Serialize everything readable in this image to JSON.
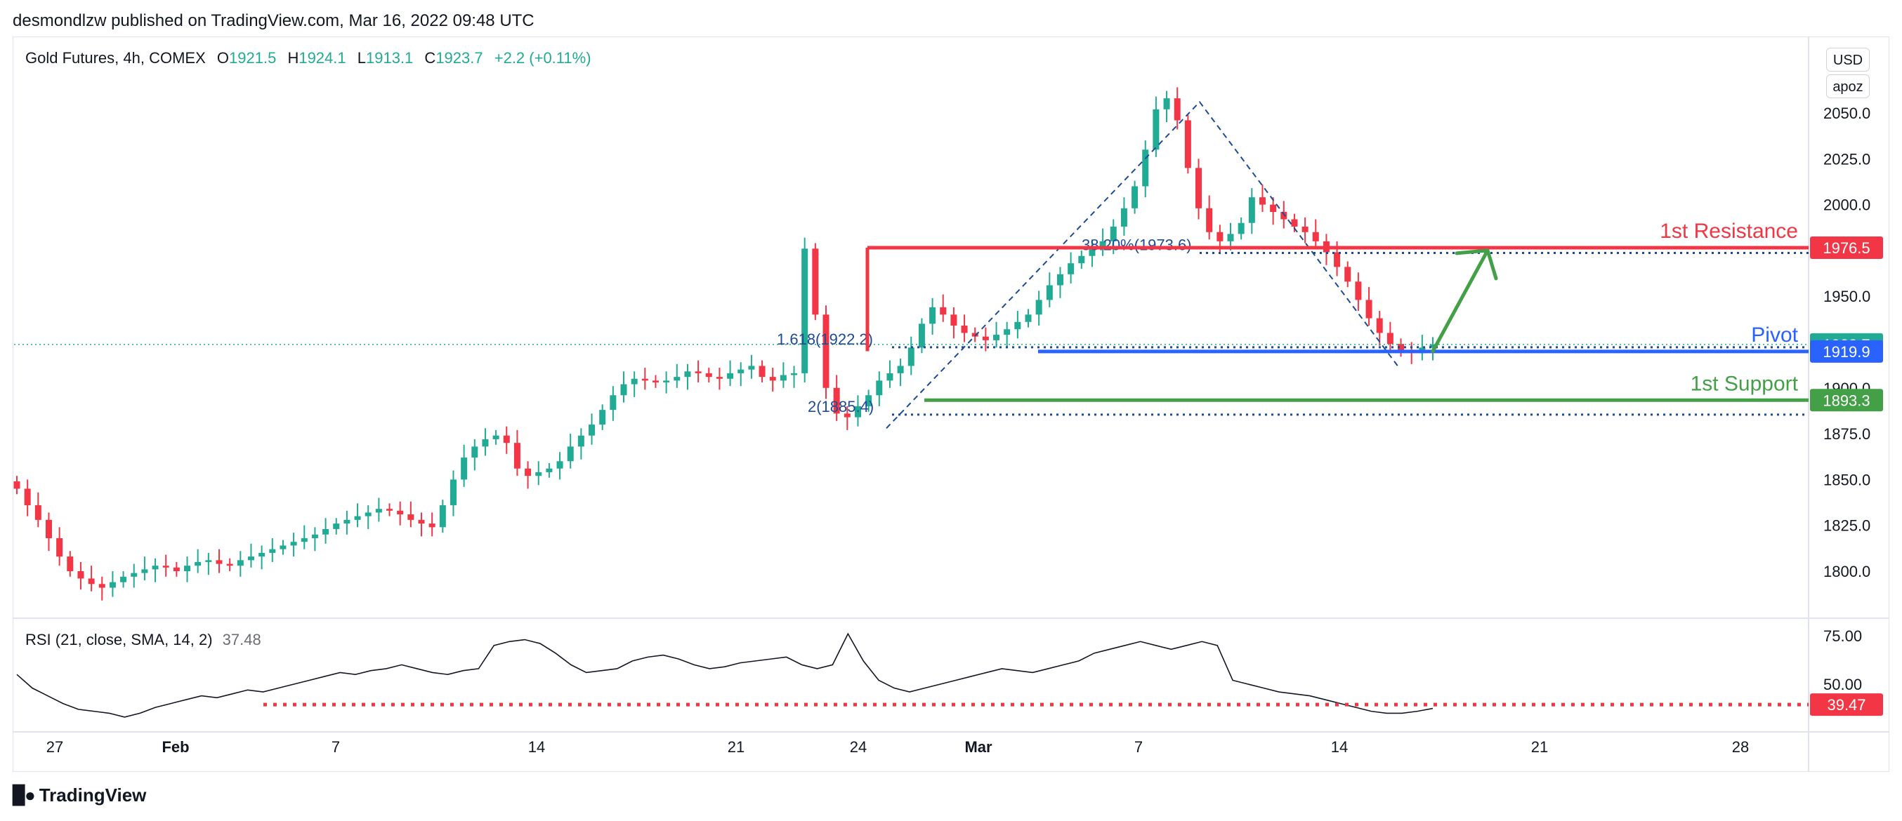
{
  "header": {
    "published": "desmondlzw published on TradingView.com, Mar 16, 2022 09:48 UTC"
  },
  "legend": {
    "symbol": "Gold Futures, 4h, COMEX",
    "open_label": "O",
    "open": "1921.5",
    "high_label": "H",
    "high": "1924.1",
    "low_label": "L",
    "low": "1913.1",
    "close_label": "C",
    "close": "1923.7",
    "change": "+2.2 (+0.11%)"
  },
  "price_scale": {
    "currency_btn": "USD",
    "mode_btn": "apoz"
  },
  "rsi": {
    "title": "RSI (21, close, SMA, 14, 2)",
    "value": "37.48"
  },
  "branding": {
    "logo_text": "TradingView",
    "logo_icon": "tradingview-logo-icon"
  },
  "colors": {
    "up": "#22ab94",
    "down": "#f23645",
    "resistance": "#f23645",
    "pivot": "#2962ff",
    "support": "#43a047",
    "fib": "#1e4a9a",
    "rsi_line": "#131722"
  },
  "chart_data": [
    {
      "type": "candlestick",
      "title": "Gold Futures, 4h, COMEX",
      "x_tick_labels": [
        "27",
        "Feb",
        "7",
        "14",
        "21",
        "24",
        "Mar",
        "7",
        "14",
        "21",
        "28"
      ],
      "y_ticks": [
        1800.0,
        1825.0,
        1850.0,
        1875.0,
        1900.0,
        1925.0,
        1950.0,
        1975.0,
        2000.0,
        2025.0,
        2050.0
      ],
      "y_tick_labels": [
        "1800.0",
        "1825.0",
        "1850.0",
        "1875.0",
        "1900.0",
        "1950.0",
        "2000.0",
        "2025.0",
        "2050.0"
      ],
      "ylim": [
        1779,
        2065
      ],
      "grid": false,
      "close_series_approx": [
        1845,
        1836,
        1828,
        1818,
        1808,
        1800,
        1796,
        1793,
        1791,
        1794,
        1797,
        1799,
        1801,
        1803,
        1802,
        1800,
        1803,
        1805,
        1806,
        1804,
        1803,
        1806,
        1808,
        1810,
        1812,
        1814,
        1816,
        1818,
        1820,
        1823,
        1826,
        1828,
        1830,
        1832,
        1834,
        1833,
        1831,
        1828,
        1826,
        1824,
        1836,
        1850,
        1862,
        1868,
        1872,
        1874,
        1870,
        1856,
        1852,
        1854,
        1856,
        1860,
        1868,
        1874,
        1880,
        1888,
        1896,
        1902,
        1905,
        1904,
        1903,
        1904,
        1906,
        1909,
        1908,
        1906,
        1905,
        1908,
        1910,
        1912,
        1906,
        1904,
        1907,
        1908,
        1976,
        1940,
        1900,
        1886,
        1884,
        1890,
        1896,
        1904,
        1908,
        1912,
        1922,
        1935,
        1944,
        1940,
        1934,
        1930,
        1928,
        1926,
        1929,
        1932,
        1936,
        1940,
        1948,
        1956,
        1962,
        1968,
        1972,
        1976,
        1980,
        1988,
        1998,
        2010,
        2030,
        2052,
        2058,
        2046,
        2020,
        1998,
        1985,
        1980,
        1984,
        1990,
        2004,
        2000,
        1996,
        1992,
        1988,
        1985,
        1980,
        1974,
        1966,
        1958,
        1948,
        1938,
        1930,
        1924,
        1920,
        1919,
        1922,
        1923.7
      ],
      "levels": [
        {
          "name": "1st Resistance",
          "value": 1976.5,
          "label": "1976.5",
          "color": "#f23645"
        },
        {
          "name": "Pivot",
          "value": 1919.9,
          "label": "1919.9",
          "color": "#2962ff"
        },
        {
          "name": "1st Support",
          "value": 1893.3,
          "label": "1893.3",
          "color": "#43a047"
        }
      ],
      "last_price": {
        "value": 1923.7,
        "label": "1923.7"
      },
      "fib_labels": [
        "38.20%(1973.6)",
        "1.618(1922.2)",
        "2(1885.4)"
      ],
      "annotations": [
        "1st Resistance",
        "Pivot",
        "1st Support"
      ]
    },
    {
      "type": "line",
      "title": "RSI (21, close, SMA, 14, 2)",
      "y_tick_labels": [
        "75.00",
        "50.00"
      ],
      "ylim": [
        25,
        80
      ],
      "values_approx": [
        55,
        48,
        44,
        40,
        37,
        36,
        35,
        33,
        35,
        38,
        40,
        42,
        44,
        43,
        45,
        47,
        46,
        48,
        50,
        52,
        54,
        56,
        55,
        57,
        58,
        60,
        58,
        56,
        55,
        57,
        58,
        70,
        72,
        73,
        71,
        66,
        60,
        56,
        57,
        58,
        62,
        64,
        65,
        63,
        60,
        58,
        59,
        61,
        62,
        63,
        64,
        60,
        58,
        60,
        76,
        62,
        52,
        48,
        46,
        48,
        50,
        52,
        54,
        56,
        58,
        57,
        56,
        58,
        60,
        62,
        66,
        68,
        70,
        72,
        70,
        68,
        70,
        72,
        70,
        52,
        50,
        48,
        46,
        45,
        44,
        42,
        40,
        38,
        36,
        35,
        35,
        36,
        37.48
      ],
      "threshold": {
        "value": 39.47,
        "label": "39.47",
        "color": "#f23645"
      }
    }
  ]
}
